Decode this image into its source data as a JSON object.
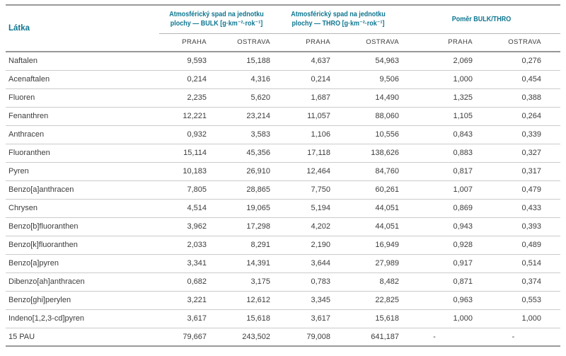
{
  "accent_color": "#0d7690",
  "border_color": "#9a9a9a",
  "row_separator_color": "#cbcbcb",
  "table": {
    "substance_header": "Látka",
    "groups": [
      {
        "name": "bulk-deposition",
        "lines": [
          "Atmosférický spad na jednotku",
          "plochy — BULK [g·km⁻²·rok⁻¹]"
        ]
      },
      {
        "name": "thro-deposition",
        "lines": [
          "Atmosférický spad na jednotku",
          "plochy — THRO [g·km⁻²·rok⁻¹]"
        ]
      },
      {
        "name": "bulk-thro-ratio",
        "lines": [
          "Poměr BULK/THRO"
        ]
      }
    ],
    "sub_headers": [
      "PRAHA",
      "OSTRAVA",
      "PRAHA",
      "OSTRAVA",
      "PRAHA",
      "OSTRAVA"
    ],
    "rows": [
      {
        "substance": "Naftalen",
        "values": [
          "9,593",
          "15,188",
          "4,637",
          "54,963",
          "2,069",
          "0,276"
        ]
      },
      {
        "substance": "Acenaftalen",
        "values": [
          "0,214",
          "4,316",
          "0,214",
          "9,506",
          "1,000",
          "0,454"
        ]
      },
      {
        "substance": "Fluoren",
        "values": [
          "2,235",
          "5,620",
          "1,687",
          "14,490",
          "1,325",
          "0,388"
        ]
      },
      {
        "substance": "Fenanthren",
        "values": [
          "12,221",
          "23,214",
          "11,057",
          "88,060",
          "1,105",
          "0,264"
        ]
      },
      {
        "substance": "Anthracen",
        "values": [
          "0,932",
          "3,583",
          "1,106",
          "10,556",
          "0,843",
          "0,339"
        ]
      },
      {
        "substance": "Fluoranthen",
        "values": [
          "15,114",
          "45,356",
          "17,118",
          "138,626",
          "0,883",
          "0,327"
        ]
      },
      {
        "substance": "Pyren",
        "values": [
          "10,183",
          "26,910",
          "12,464",
          "84,760",
          "0,817",
          "0,317"
        ]
      },
      {
        "substance": "Benzo[a]anthracen",
        "values": [
          "7,805",
          "28,865",
          "7,750",
          "60,261",
          "1,007",
          "0,479"
        ]
      },
      {
        "substance": "Chrysen",
        "values": [
          "4,514",
          "19,065",
          "5,194",
          "44,051",
          "0,869",
          "0,433"
        ]
      },
      {
        "substance": "Benzo[b]fluoranthen",
        "values": [
          "3,962",
          "17,298",
          "4,202",
          "44,051",
          "0,943",
          "0,393"
        ]
      },
      {
        "substance": "Benzo[k]fluoranthen",
        "values": [
          "2,033",
          "8,291",
          "2,190",
          "16,949",
          "0,928",
          "0,489"
        ]
      },
      {
        "substance": "Benzo[a]pyren",
        "values": [
          "3,341",
          "14,391",
          "3,644",
          "27,989",
          "0,917",
          "0,514"
        ]
      },
      {
        "substance": "Dibenzo[ah]anthracen",
        "values": [
          "0,682",
          "3,175",
          "0,783",
          "8,482",
          "0,871",
          "0,374"
        ]
      },
      {
        "substance": "Benzo[ghi]perylen",
        "values": [
          "3,221",
          "12,612",
          "3,345",
          "22,825",
          "0,963",
          "0,553"
        ]
      },
      {
        "substance": "Indeno[1,2,3-cd]pyren",
        "values": [
          "3,617",
          "15,618",
          "3,617",
          "15,618",
          "1,000",
          "1,000"
        ]
      },
      {
        "substance": "15 PAU",
        "values": [
          "79,667",
          "243,502",
          "79,008",
          "641,187",
          "-",
          "-"
        ]
      }
    ]
  }
}
